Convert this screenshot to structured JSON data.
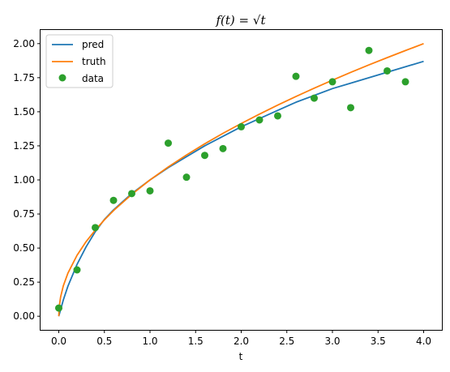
{
  "chart_data": {
    "type": "line",
    "title": "f(t) = √t",
    "xlabel": "t",
    "ylabel": "",
    "xlim": [
      -0.2,
      4.2
    ],
    "ylim": [
      -0.1,
      2.1
    ],
    "x_ticks": [
      0.0,
      0.5,
      1.0,
      1.5,
      2.0,
      2.5,
      3.0,
      3.5,
      4.0
    ],
    "x_tick_labels": [
      "0.0",
      "0.5",
      "1.0",
      "1.5",
      "2.0",
      "2.5",
      "3.0",
      "3.5",
      "4.0"
    ],
    "y_ticks": [
      0.0,
      0.25,
      0.5,
      0.75,
      1.0,
      1.25,
      1.5,
      1.75,
      2.0
    ],
    "y_tick_labels": [
      "0.00",
      "0.25",
      "0.50",
      "0.75",
      "1.00",
      "1.25",
      "1.50",
      "1.75",
      "2.00"
    ],
    "grid": false,
    "legend_position": "upper-left",
    "series": [
      {
        "name": "pred",
        "kind": "line",
        "color": "#1f77b4",
        "x": [
          0.0,
          0.05,
          0.1,
          0.2,
          0.3,
          0.4,
          0.5,
          0.6,
          0.8,
          1.0,
          1.2,
          1.4,
          1.6,
          1.8,
          2.0,
          2.2,
          2.4,
          2.6,
          2.8,
          3.0,
          3.2,
          3.4,
          3.6,
          3.8,
          4.0
        ],
        "y": [
          0.0,
          0.12,
          0.22,
          0.38,
          0.51,
          0.62,
          0.71,
          0.78,
          0.9,
          1.0,
          1.09,
          1.17,
          1.25,
          1.32,
          1.39,
          1.45,
          1.51,
          1.57,
          1.62,
          1.67,
          1.71,
          1.75,
          1.79,
          1.83,
          1.87
        ]
      },
      {
        "name": "truth",
        "kind": "line",
        "color": "#ff7f0e",
        "x": [
          0.0,
          0.005,
          0.02,
          0.05,
          0.1,
          0.2,
          0.3,
          0.4,
          0.5,
          0.6,
          0.8,
          1.0,
          1.2,
          1.4,
          1.6,
          1.8,
          2.0,
          2.2,
          2.4,
          2.6,
          2.8,
          3.0,
          3.2,
          3.4,
          3.6,
          3.8,
          4.0
        ],
        "y": [
          0.0,
          0.071,
          0.141,
          0.224,
          0.316,
          0.447,
          0.548,
          0.632,
          0.707,
          0.775,
          0.894,
          1.0,
          1.095,
          1.183,
          1.265,
          1.342,
          1.414,
          1.483,
          1.549,
          1.612,
          1.673,
          1.732,
          1.789,
          1.844,
          1.897,
          1.949,
          2.0
        ]
      },
      {
        "name": "data",
        "kind": "scatter",
        "color": "#2ca02c",
        "x": [
          0.0,
          0.2,
          0.4,
          0.6,
          0.8,
          1.0,
          1.2,
          1.4,
          1.6,
          1.8,
          2.0,
          2.2,
          2.4,
          2.6,
          2.8,
          3.0,
          3.2,
          3.4,
          3.6,
          3.8
        ],
        "y": [
          0.06,
          0.34,
          0.65,
          0.85,
          0.9,
          0.92,
          1.27,
          1.02,
          1.18,
          1.23,
          1.39,
          1.44,
          1.47,
          1.76,
          1.6,
          1.72,
          1.53,
          1.95,
          1.8,
          1.72
        ]
      }
    ]
  }
}
